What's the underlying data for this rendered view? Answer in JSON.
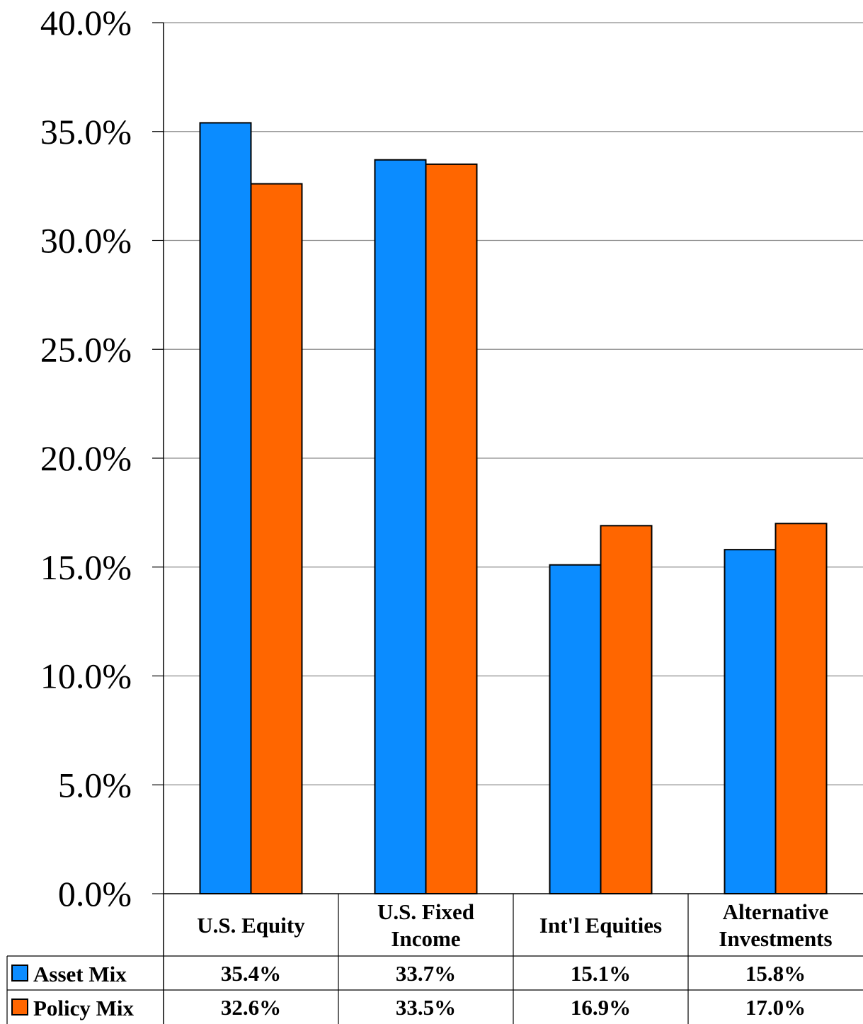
{
  "chart_data": {
    "type": "bar",
    "categories": [
      [
        "U.S. Equity"
      ],
      [
        "U.S. Fixed",
        "Income"
      ],
      [
        "Int'l Equities"
      ],
      [
        "Alternative",
        "Investments"
      ]
    ],
    "series": [
      {
        "name": "Asset Mix",
        "color": "#0b8cff",
        "values": [
          35.4,
          33.7,
          15.1,
          15.8
        ],
        "labels": [
          "35.4%",
          "33.7%",
          "15.1%",
          "15.8%"
        ]
      },
      {
        "name": "Policy Mix",
        "color": "#ff6600",
        "values": [
          32.6,
          33.5,
          16.9,
          17.0
        ],
        "labels": [
          "32.6%",
          "33.5%",
          "16.9%",
          "17.0%"
        ]
      }
    ],
    "ylim": [
      0,
      40
    ],
    "yticks": [
      "0.0%",
      "5.0%",
      "10.0%",
      "15.0%",
      "20.0%",
      "25.0%",
      "30.0%",
      "35.0%",
      "40.0%"
    ],
    "grid": true,
    "legend": "data-table"
  }
}
